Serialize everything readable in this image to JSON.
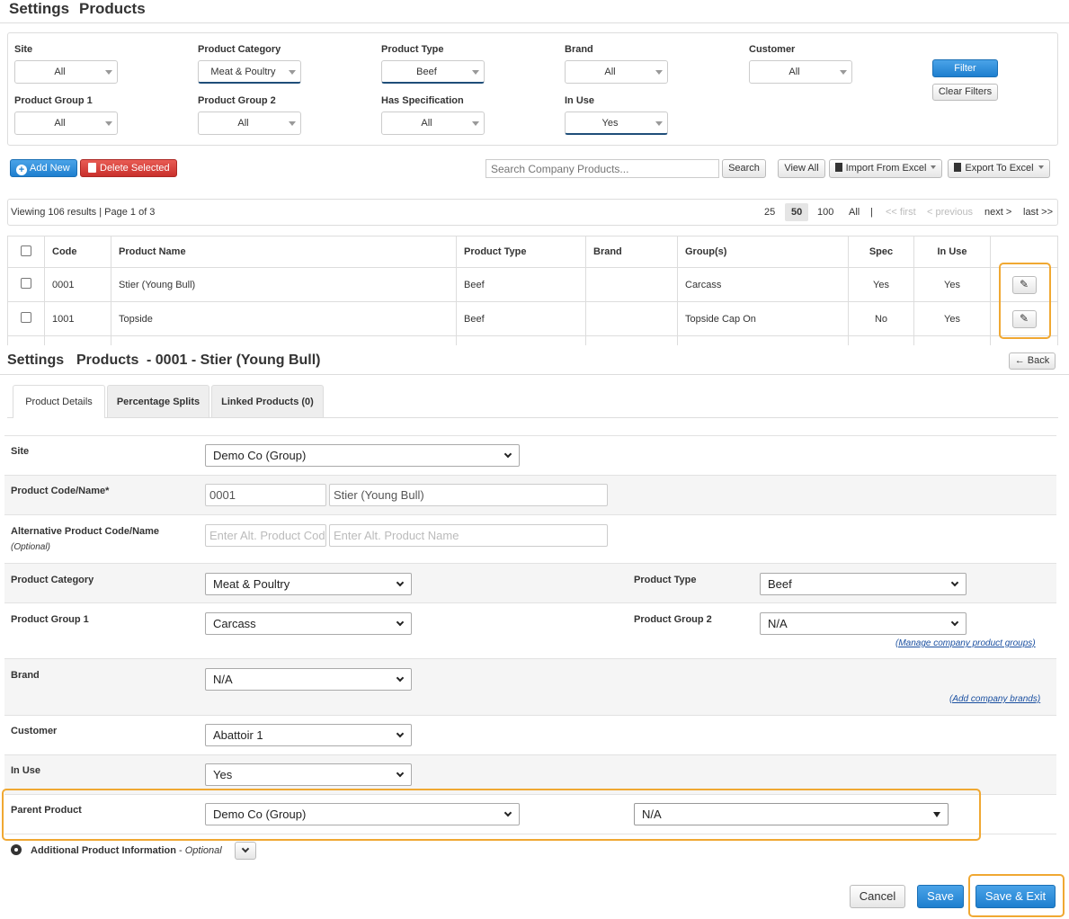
{
  "list": {
    "breadcrumb": {
      "settings": "Settings",
      "products": "Products"
    },
    "filters": [
      {
        "label": "Site",
        "value": "All"
      },
      {
        "label": "Product Category",
        "value": "Meat & Poultry"
      },
      {
        "label": "Product Type",
        "value": "Beef"
      },
      {
        "label": "Brand",
        "value": "All"
      },
      {
        "label": "Customer",
        "value": "All"
      },
      {
        "label": "Product Group 1",
        "value": "All"
      },
      {
        "label": "Product Group 2",
        "value": "All"
      },
      {
        "label": "Has Specification",
        "value": "All"
      },
      {
        "label": "In Use",
        "value": "Yes"
      }
    ],
    "filter_button": "Filter",
    "clear_button": "Clear Filters",
    "add_new": "Add New",
    "delete_selected": "Delete Selected",
    "search_placeholder": "Search Company Products...",
    "search_button": "Search",
    "view_all": "View All",
    "import_excel": "Import From Excel",
    "export_excel": "Export To Excel",
    "viewing_text": "Viewing 106 results | Page 1 of 3",
    "page_sizes": [
      "25",
      "50",
      "100",
      "All"
    ],
    "separator": "|",
    "nav": {
      "first": "<< first",
      "previous": "< previous",
      "next": "next >",
      "last": "last >>"
    },
    "columns": [
      "Code",
      "Product Name",
      "Product Type",
      "Brand",
      "Group(s)",
      "Spec",
      "In Use"
    ],
    "rows": [
      {
        "code": "0001",
        "name": "Stier (Young Bull)",
        "type": "Beef",
        "brand": "",
        "groups": "Carcass",
        "spec": "Yes",
        "in_use": "Yes"
      },
      {
        "code": "1001",
        "name": "Topside",
        "type": "Beef",
        "brand": "",
        "groups": "Topside Cap On",
        "spec": "No",
        "in_use": "Yes"
      }
    ]
  },
  "detail": {
    "breadcrumb": {
      "settings": "Settings",
      "products": "Products",
      "suffix": "- 0001 - Stier (Young Bull)"
    },
    "back_button": "Back",
    "tabs": [
      "Product Details",
      "Percentage Splits",
      "Linked Products (0)"
    ],
    "fields": {
      "site": {
        "label": "Site",
        "value": "Demo Co (Group)"
      },
      "code_name": {
        "label": "Product Code/Name*",
        "code": "0001",
        "name": "Stier (Young Bull)"
      },
      "alt_code_name": {
        "label": "Alternative Product Code/Name",
        "sub": "(Optional)",
        "code_placeholder": "Enter Alt. Product Code",
        "name_placeholder": "Enter Alt. Product Name"
      },
      "category": {
        "label": "Product Category",
        "value": "Meat & Poultry"
      },
      "type": {
        "label": "Product Type",
        "value": "Beef"
      },
      "group1": {
        "label": "Product Group 1",
        "value": "Carcass"
      },
      "group2": {
        "label": "Product Group 2",
        "value": "N/A",
        "link": "(Manage company product groups)"
      },
      "brand": {
        "label": "Brand",
        "value": "N/A",
        "link": "(Add company brands)"
      },
      "customer": {
        "label": "Customer",
        "value": "Abattoir 1"
      },
      "in_use": {
        "label": "In Use",
        "value": "Yes"
      },
      "parent": {
        "label": "Parent Product",
        "site": "Demo Co (Group)",
        "product": "N/A"
      }
    },
    "additional_info": {
      "label": "Additional Product Information",
      "sep": " - ",
      "optional": "Optional"
    },
    "buttons": {
      "cancel": "Cancel",
      "save": "Save",
      "save_exit": "Save & Exit"
    }
  },
  "colors": {
    "accent": "#2e8bd1",
    "danger": "#d9534f",
    "highlight": "#f0a832"
  }
}
